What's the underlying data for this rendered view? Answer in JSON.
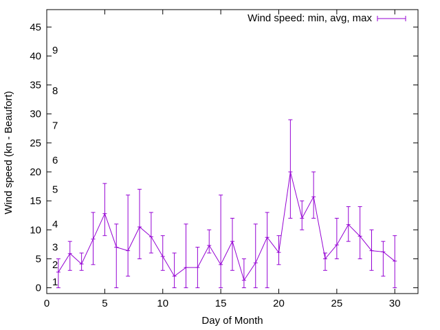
{
  "chart_data": {
    "type": "line",
    "xlabel": "Day of Month",
    "ylabel": "Wind speed (kn - Beaufort)",
    "xlim": [
      0,
      32
    ],
    "ylim": [
      -1,
      48
    ],
    "x_ticks": [
      0,
      5,
      10,
      15,
      20,
      25,
      30
    ],
    "y_ticks": [
      0,
      5,
      10,
      15,
      20,
      25,
      30,
      35,
      40,
      45
    ],
    "grid": false,
    "legend_position": "top-right",
    "series": [
      {
        "name": "Wind speed: min, avg, max",
        "color": "#9400d3",
        "points": [
          {
            "x": 1,
            "min": 0,
            "avg": 2.7,
            "max": 5
          },
          {
            "x": 2,
            "min": 3,
            "avg": 5.9,
            "max": 8
          },
          {
            "x": 3,
            "min": 3,
            "avg": 4.1,
            "max": 6
          },
          {
            "x": 4,
            "min": 4,
            "avg": 8.4,
            "max": 13
          },
          {
            "x": 5,
            "min": 9,
            "avg": 12.8,
            "max": 18
          },
          {
            "x": 6,
            "min": 0,
            "avg": 7,
            "max": 11
          },
          {
            "x": 7,
            "min": 2,
            "avg": 6.4,
            "max": 16
          },
          {
            "x": 8,
            "min": 5,
            "avg": 10.5,
            "max": 17
          },
          {
            "x": 9,
            "min": 6,
            "avg": 8.8,
            "max": 13
          },
          {
            "x": 10,
            "min": 3,
            "avg": 5.4,
            "max": 9
          },
          {
            "x": 11,
            "min": 0,
            "avg": 2,
            "max": 6
          },
          {
            "x": 12,
            "min": 0,
            "avg": 3.5,
            "max": 11
          },
          {
            "x": 13,
            "min": 0,
            "avg": 3.5,
            "max": 7
          },
          {
            "x": 14,
            "min": 6,
            "avg": 7.3,
            "max": 10
          },
          {
            "x": 15,
            "min": 0,
            "avg": 4,
            "max": 16
          },
          {
            "x": 16,
            "min": 3,
            "avg": 8,
            "max": 12
          },
          {
            "x": 17,
            "min": 0,
            "avg": 1.3,
            "max": 5
          },
          {
            "x": 18,
            "min": 0,
            "avg": 4.3,
            "max": 11
          },
          {
            "x": 19,
            "min": 0,
            "avg": 8.7,
            "max": 13
          },
          {
            "x": 20,
            "min": 4,
            "avg": 6.1,
            "max": 9
          },
          {
            "x": 21,
            "min": 12,
            "avg": 20,
            "max": 29
          },
          {
            "x": 22,
            "min": 10,
            "avg": 12,
            "max": 15
          },
          {
            "x": 23,
            "min": 12,
            "avg": 15.7,
            "max": 20
          },
          {
            "x": 24,
            "min": 3,
            "avg": 5,
            "max": 6
          },
          {
            "x": 25,
            "min": 5,
            "avg": 7.4,
            "max": 12
          },
          {
            "x": 26,
            "min": 8,
            "avg": 10.9,
            "max": 14
          },
          {
            "x": 27,
            "min": 5,
            "avg": 8.9,
            "max": 14
          },
          {
            "x": 28,
            "min": 3,
            "avg": 6.4,
            "max": 10
          },
          {
            "x": 29,
            "min": 2,
            "avg": 6.2,
            "max": 8
          },
          {
            "x": 30,
            "min": 0,
            "avg": 4.6,
            "max": 9
          }
        ]
      }
    ],
    "annotations": [
      {
        "text": "1",
        "y": 1
      },
      {
        "text": "2",
        "y": 4
      },
      {
        "text": "3",
        "y": 7
      },
      {
        "text": "4",
        "y": 11
      },
      {
        "text": "5",
        "y": 17
      },
      {
        "text": "6",
        "y": 22
      },
      {
        "text": "7",
        "y": 28
      },
      {
        "text": "8",
        "y": 34
      },
      {
        "text": "9",
        "y": 41
      }
    ]
  }
}
